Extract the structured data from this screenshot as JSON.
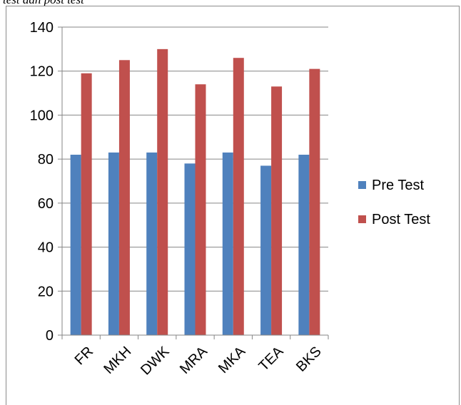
{
  "caption": "test dan post test",
  "chart_data": {
    "type": "bar",
    "categories": [
      "FR",
      "MKH",
      "DWK",
      "MRA",
      "MKA",
      "TEA",
      "BKS"
    ],
    "series": [
      {
        "name": "Pre Test",
        "values": [
          82,
          83,
          83,
          78,
          83,
          77,
          82
        ],
        "color": "#4f81bd"
      },
      {
        "name": "Post Test",
        "values": [
          119,
          125,
          130,
          114,
          126,
          113,
          121
        ],
        "color": "#c0504d"
      }
    ],
    "title": "",
    "xlabel": "",
    "ylabel": "",
    "ylim": [
      0,
      140
    ],
    "yticks": [
      0,
      20,
      40,
      60,
      80,
      100,
      120,
      140
    ],
    "grid": true,
    "legend": "right"
  }
}
